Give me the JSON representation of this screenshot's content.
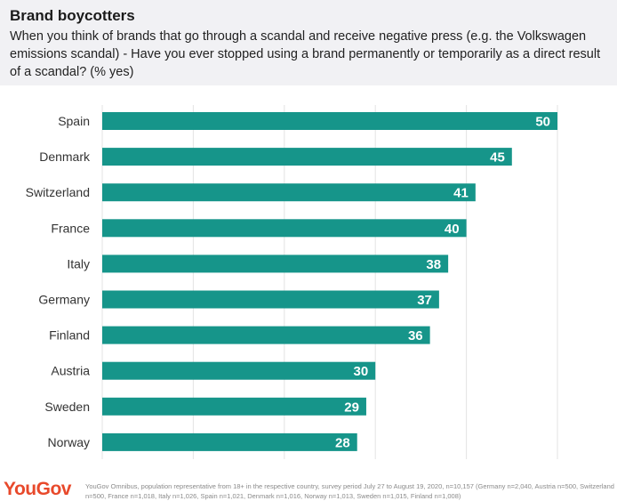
{
  "header": {
    "title": "Brand boycotters",
    "subtitle": "When you think of brands that go through a scandal and receive negative press (e.g. the Volkswagen emissions scandal) - Have you ever stopped using a brand permanently or temporarily as a direct result of a scandal? (% yes)"
  },
  "chart_data": {
    "type": "bar",
    "orientation": "horizontal",
    "title": "",
    "xlabel": "",
    "ylabel": "",
    "categories": [
      "Spain",
      "Denmark",
      "Switzerland",
      "France",
      "Italy",
      "Germany",
      "Finland",
      "Austria",
      "Sweden",
      "Norway"
    ],
    "values": [
      50,
      45,
      41,
      40,
      38,
      37,
      36,
      30,
      29,
      28
    ],
    "xlim": [
      0,
      50
    ],
    "grid": true,
    "bar_color": "#16958a",
    "label_color": "#ffffff"
  },
  "footer": {
    "logo": "YouGov",
    "note": "YouGov Omnibus, population representative from 18+ in the respective country, survey period July 27 to August 19, 2020, n=10,157 (Germany n=2,040, Austria n=500, Switzerland n=500, France n=1,018, Italy n=1,026, Spain n=1,021, Denmark n=1,016, Norway n=1,013, Sweden n=1,015, Finland n=1,008)",
    "logo_color": "#e8492b"
  }
}
